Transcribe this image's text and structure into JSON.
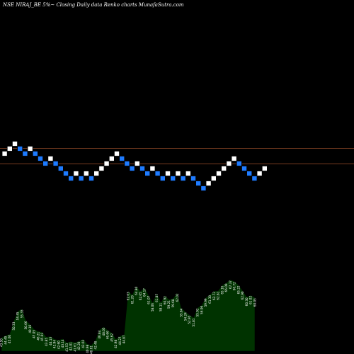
{
  "header": {
    "title": "NSE NIRAJ_BE 5%~  Closing Daily data Renko  charts MunafaSutra.com"
  },
  "colors": {
    "background": "#000000",
    "up_brick": "#ffffff",
    "down_brick": "#1e7bff",
    "brick_outline": "#000000",
    "reference_line": "#a0522d",
    "volume_fill": "#003300",
    "volume_line": "#000000"
  },
  "chart_data": [
    {
      "type": "renko",
      "title": "NSE NIRAJ_BE 5%~  Closing Daily data Renko  charts MunafaSutra.com",
      "brick_size_note": "5%",
      "reference_levels": [
        2,
        -1
      ],
      "bricks": [
        {
          "level": 1,
          "dir": "up"
        },
        {
          "level": 2,
          "dir": "up"
        },
        {
          "level": 3,
          "dir": "up"
        },
        {
          "level": 2,
          "dir": "down"
        },
        {
          "level": 1,
          "dir": "down"
        },
        {
          "level": 2,
          "dir": "up"
        },
        {
          "level": 1,
          "dir": "down"
        },
        {
          "level": 0,
          "dir": "down"
        },
        {
          "level": -1,
          "dir": "down"
        },
        {
          "level": 0,
          "dir": "up"
        },
        {
          "level": -1,
          "dir": "down"
        },
        {
          "level": -2,
          "dir": "down"
        },
        {
          "level": -3,
          "dir": "down"
        },
        {
          "level": -4,
          "dir": "down"
        },
        {
          "level": -3,
          "dir": "up"
        },
        {
          "level": -4,
          "dir": "down"
        },
        {
          "level": -3,
          "dir": "up"
        },
        {
          "level": -4,
          "dir": "down"
        },
        {
          "level": -3,
          "dir": "up"
        },
        {
          "level": -2,
          "dir": "up"
        },
        {
          "level": -1,
          "dir": "up"
        },
        {
          "level": 0,
          "dir": "up"
        },
        {
          "level": 1,
          "dir": "up"
        },
        {
          "level": 0,
          "dir": "down"
        },
        {
          "level": -1,
          "dir": "down"
        },
        {
          "level": -2,
          "dir": "down"
        },
        {
          "level": -1,
          "dir": "up"
        },
        {
          "level": -2,
          "dir": "down"
        },
        {
          "level": -3,
          "dir": "down"
        },
        {
          "level": -2,
          "dir": "up"
        },
        {
          "level": -3,
          "dir": "down"
        },
        {
          "level": -4,
          "dir": "down"
        },
        {
          "level": -3,
          "dir": "up"
        },
        {
          "level": -4,
          "dir": "down"
        },
        {
          "level": -3,
          "dir": "up"
        },
        {
          "level": -4,
          "dir": "down"
        },
        {
          "level": -3,
          "dir": "up"
        },
        {
          "level": -4,
          "dir": "down"
        },
        {
          "level": -5,
          "dir": "down"
        },
        {
          "level": -6,
          "dir": "down"
        },
        {
          "level": -5,
          "dir": "up"
        },
        {
          "level": -4,
          "dir": "up"
        },
        {
          "level": -3,
          "dir": "up"
        },
        {
          "level": -2,
          "dir": "up"
        },
        {
          "level": -1,
          "dir": "up"
        },
        {
          "level": 0,
          "dir": "up"
        },
        {
          "level": -1,
          "dir": "down"
        },
        {
          "level": -2,
          "dir": "down"
        },
        {
          "level": -3,
          "dir": "down"
        },
        {
          "level": -4,
          "dir": "down"
        },
        {
          "level": -3,
          "dir": "up"
        },
        {
          "level": -2,
          "dir": "up"
        }
      ]
    },
    {
      "type": "area",
      "volume_labels": [
        "43.50",
        "44.49",
        "45.00",
        "50.33",
        "54.45",
        "55.35",
        "50.66",
        "49.16",
        "47.05",
        "46.21",
        "45.91",
        "43.85",
        "44.13",
        "42.94",
        "42.60",
        "43.14",
        "41.53",
        "42.01",
        "41.61",
        "42.20",
        "43.02",
        "40.98",
        "40.61",
        "42.48",
        "46.84",
        "48.05",
        "46.66",
        "45.62",
        "42.98",
        "44.27",
        "44.87",
        "62.63",
        "61.20",
        "64.80",
        "62.65",
        "64.17",
        "61.07",
        "58.06",
        "61.87",
        "58.11",
        "60.92",
        "59.21",
        "59.68",
        "62.02",
        "55.84",
        "54.24",
        "52.95",
        "51.81",
        "55.92",
        "56.96",
        "59.99",
        "61.30",
        "62.72",
        "62.81",
        "65.16",
        "66.09",
        "67.37",
        "66.72",
        "65.22",
        "62.90",
        "60.30",
        "61.02",
        "60.05"
      ]
    }
  ]
}
